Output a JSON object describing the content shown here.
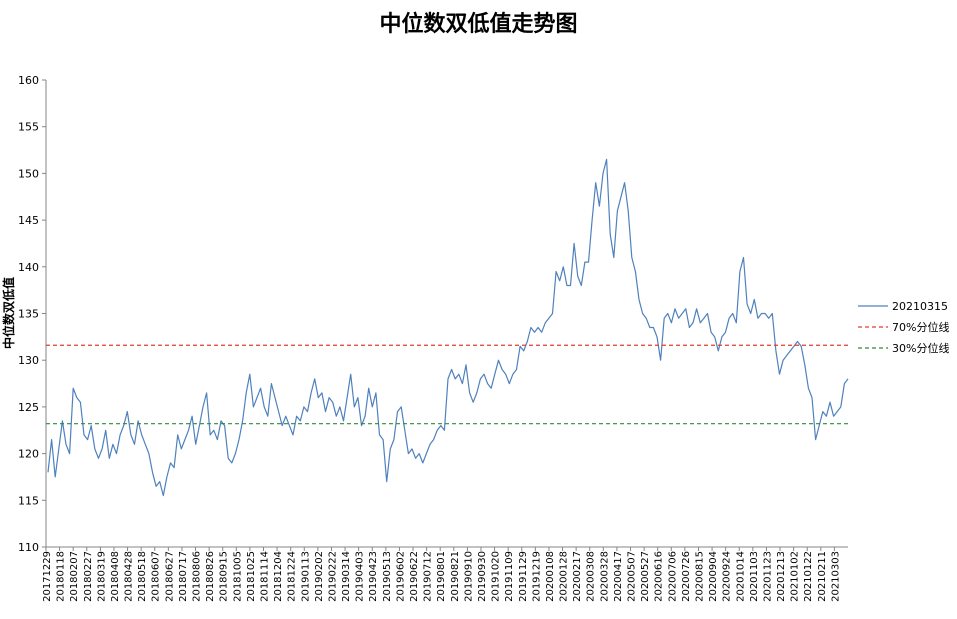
{
  "chart_data": {
    "type": "line",
    "title": "中位数双低值走势图",
    "xlabel": "",
    "ylabel": "中位数双低值",
    "ylim": [
      110,
      160
    ],
    "yticks": [
      110,
      115,
      120,
      125,
      130,
      135,
      140,
      145,
      150,
      155,
      160
    ],
    "xtick_labels": [
      "20171229",
      "20180118",
      "20180207",
      "20180227",
      "20180319",
      "20180408",
      "20180428",
      "20180518",
      "20180607",
      "20180627",
      "20180717",
      "20180806",
      "20180826",
      "20180915",
      "20181005",
      "20181025",
      "20181114",
      "20181204",
      "20181224",
      "20190113",
      "20190202",
      "20190222",
      "20190314",
      "20190403",
      "20190423",
      "20190513",
      "20190602",
      "20190622",
      "20190712",
      "20190801",
      "20190821",
      "20190910",
      "20190930",
      "20191020",
      "20191109",
      "20191129",
      "20191219",
      "20200108",
      "20200128",
      "20200217",
      "20200308",
      "20200328",
      "20200417",
      "20200507",
      "20200527",
      "20200616",
      "20200706",
      "20200726",
      "20200815",
      "20200904",
      "20200924",
      "20201014",
      "20201103",
      "20201123",
      "20201213",
      "20210102",
      "20210122",
      "20210211",
      "20210303"
    ],
    "legend_position": "right",
    "grid": false,
    "series": [
      {
        "name": "20210315",
        "color": "#4f81bd",
        "values": [
          118.0,
          121.5,
          117.5,
          120.5,
          123.5,
          121.0,
          120.0,
          127.0,
          126.0,
          125.5,
          122.0,
          121.5,
          123.0,
          120.5,
          119.5,
          120.5,
          122.5,
          119.5,
          121.0,
          120.0,
          122.0,
          123.0,
          124.5,
          122.0,
          121.0,
          123.5,
          122.0,
          121.0,
          120.0,
          118.0,
          116.5,
          117.0,
          115.5,
          117.5,
          119.0,
          118.5,
          122.0,
          120.5,
          121.5,
          122.5,
          124.0,
          121.0,
          123.0,
          125.0,
          126.5,
          122.0,
          122.5,
          121.5,
          123.5,
          123.0,
          119.5,
          119.0,
          120.0,
          121.5,
          123.5,
          126.5,
          128.5,
          125.0,
          126.0,
          127.0,
          125.0,
          124.0,
          127.5,
          126.0,
          124.5,
          123.0,
          124.0,
          123.0,
          122.0,
          124.0,
          123.5,
          125.0,
          124.5,
          126.5,
          128.0,
          126.0,
          126.5,
          124.5,
          126.0,
          125.5,
          124.0,
          125.0,
          123.5,
          126.0,
          128.5,
          125.0,
          126.0,
          123.0,
          124.0,
          127.0,
          125.0,
          126.5,
          122.0,
          121.5,
          117.0,
          120.5,
          121.5,
          124.5,
          125.0,
          122.5,
          120.0,
          120.5,
          119.5,
          120.0,
          119.0,
          120.0,
          121.0,
          121.5,
          122.5,
          123.0,
          122.5,
          128.0,
          129.0,
          128.0,
          128.5,
          127.5,
          129.5,
          126.5,
          125.5,
          126.5,
          128.0,
          128.5,
          127.5,
          127.0,
          128.5,
          130.0,
          129.0,
          128.5,
          127.5,
          128.5,
          129.0,
          131.5,
          131.0,
          132.0,
          133.5,
          133.0,
          133.5,
          133.0,
          134.0,
          134.5,
          135.0,
          139.5,
          138.5,
          140.0,
          138.0,
          138.0,
          142.5,
          139.0,
          138.0,
          140.5,
          140.5,
          145.0,
          149.0,
          146.5,
          150.0,
          151.5,
          143.5,
          141.0,
          146.0,
          147.5,
          149.0,
          146.0,
          141.0,
          139.5,
          136.5,
          135.0,
          134.5,
          133.5,
          133.5,
          132.5,
          130.0,
          134.5,
          135.0,
          134.0,
          135.5,
          134.5,
          135.0,
          135.5,
          133.5,
          134.0,
          135.5,
          134.0,
          134.5,
          135.0,
          133.0,
          132.5,
          131.0,
          132.5,
          133.0,
          134.5,
          135.0,
          134.0,
          139.5,
          141.0,
          136.0,
          135.0,
          136.5,
          134.5,
          135.0,
          135.0,
          134.5,
          135.0,
          131.0,
          128.5,
          130.0,
          130.5,
          131.0,
          131.5,
          132.0,
          131.5,
          129.5,
          127.0,
          126.0,
          121.5,
          123.0,
          124.5,
          124.0,
          125.5,
          124.0,
          124.5,
          125.0,
          127.5,
          128.0
        ]
      },
      {
        "name": "70%分位线",
        "color": "#e03c31",
        "constant": 131.6
      },
      {
        "name": "30%分位线",
        "color": "#2e8b3a",
        "constant": 123.2
      }
    ]
  }
}
